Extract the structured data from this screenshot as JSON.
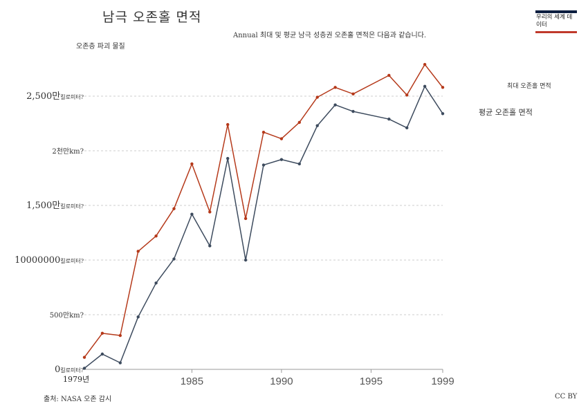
{
  "header": {
    "title": "남극 오존홀 면적",
    "subtitle": "Annual 최대 및 평균 남극 성층권 오존홀 면적은 다음과 같습니다.",
    "subhead": "오존층 파괴 물질"
  },
  "logo": {
    "text": "우리의 세계 데이터"
  },
  "footer": {
    "source": "출처: NASA 오존 감시",
    "license": "CC BY"
  },
  "colors": {
    "max": "#b5391a",
    "mean": "#3d4b5e",
    "grid": "#cccccc"
  },
  "chart_data": {
    "type": "line",
    "xlim": [
      1979,
      1999
    ],
    "ylim": [
      0,
      25000000
    ],
    "grid": true,
    "legend": "right",
    "y_ticks": [
      {
        "value": 0,
        "label": "0",
        "unit": "킬로미터?"
      },
      {
        "value": 5000000,
        "label": "500만km?",
        "unit": ""
      },
      {
        "value": 10000000,
        "label": "10000000",
        "unit": "킬로미터?"
      },
      {
        "value": 15000000,
        "label": "1,500만",
        "unit": "킬로미터?"
      },
      {
        "value": 20000000,
        "label": "2천만km?",
        "unit": ""
      },
      {
        "value": 25000000,
        "label": "2,500만",
        "unit": "킬로미터?"
      }
    ],
    "x_ticks": [
      {
        "value": 1979,
        "label": "1979년"
      },
      {
        "value": 1985,
        "label": "1985"
      },
      {
        "value": 1990,
        "label": "1990"
      },
      {
        "value": 1995,
        "label": "1995"
      },
      {
        "value": 1999,
        "label": "1999"
      }
    ],
    "series": [
      {
        "name": "최대 오존홀 면적",
        "color": "#b5391a",
        "points": [
          [
            1979,
            1100000
          ],
          [
            1980,
            3300000
          ],
          [
            1981,
            3100000
          ],
          [
            1982,
            10800000
          ],
          [
            1983,
            12200000
          ],
          [
            1984,
            14700000
          ],
          [
            1985,
            18800000
          ],
          [
            1986,
            14400000
          ],
          [
            1987,
            22400000
          ],
          [
            1988,
            13800000
          ],
          [
            1989,
            21700000
          ],
          [
            1990,
            21100000
          ],
          [
            1991,
            22600000
          ],
          [
            1992,
            24900000
          ],
          [
            1993,
            25800000
          ],
          [
            1994,
            25200000
          ],
          [
            1996,
            26900000
          ],
          [
            1997,
            25100000
          ],
          [
            1998,
            27900000
          ],
          [
            1999,
            25800000
          ]
        ]
      },
      {
        "name": "평균 오존홀 면적",
        "color": "#3d4b5e",
        "points": [
          [
            1979,
            100000
          ],
          [
            1980,
            1400000
          ],
          [
            1981,
            600000
          ],
          [
            1982,
            4800000
          ],
          [
            1983,
            7900000
          ],
          [
            1984,
            10100000
          ],
          [
            1985,
            14200000
          ],
          [
            1986,
            11300000
          ],
          [
            1987,
            19300000
          ],
          [
            1988,
            10000000
          ],
          [
            1989,
            18700000
          ],
          [
            1990,
            19200000
          ],
          [
            1991,
            18800000
          ],
          [
            1992,
            22300000
          ],
          [
            1993,
            24200000
          ],
          [
            1994,
            23600000
          ],
          [
            1996,
            22900000
          ],
          [
            1997,
            22100000
          ],
          [
            1998,
            25900000
          ],
          [
            1999,
            23400000
          ]
        ]
      }
    ]
  }
}
